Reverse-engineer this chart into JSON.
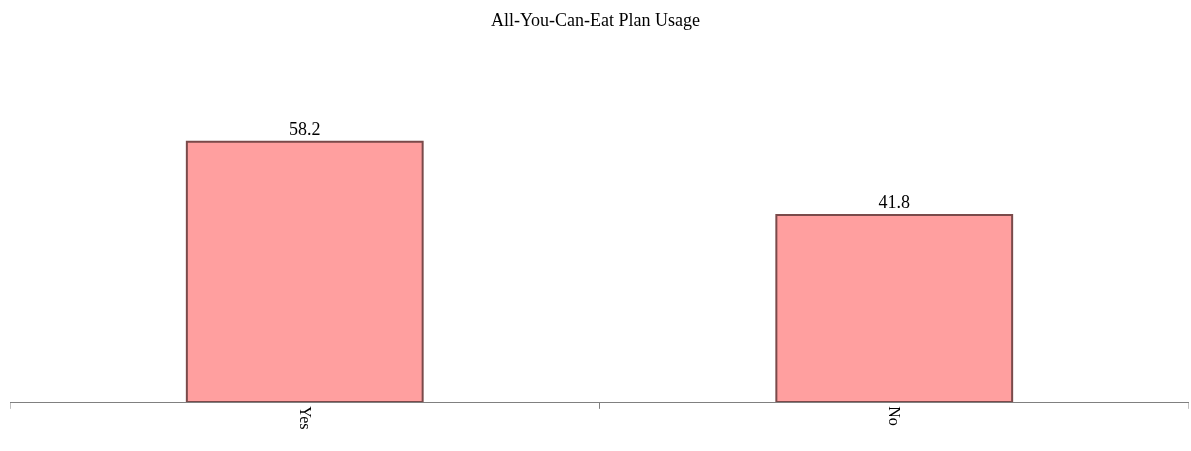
{
  "chart_data": {
    "type": "bar",
    "title": "All-You-Can-Eat Plan Usage",
    "categories": [
      "Yes",
      "No"
    ],
    "values": [
      58.2,
      41.8
    ],
    "color": "#ff9f9f",
    "data_labels": true,
    "tick_labels": "x"
  }
}
